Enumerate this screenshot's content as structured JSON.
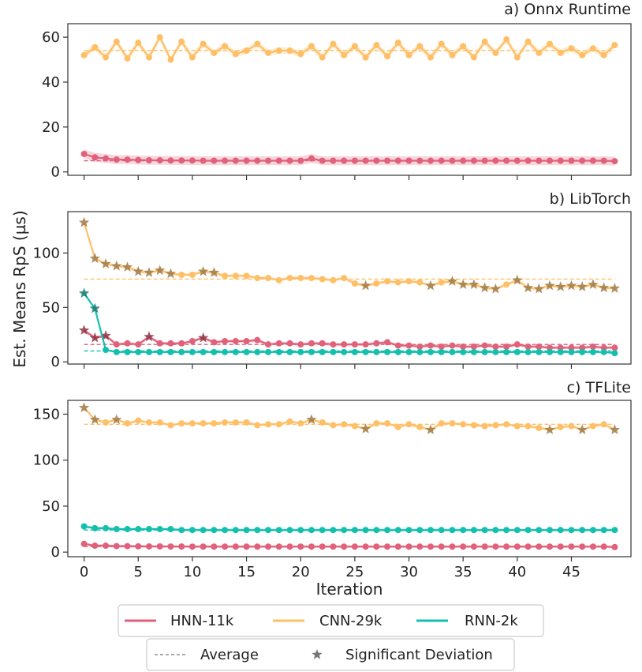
{
  "chart_data": {
    "type": "line",
    "xlabel": "Iteration",
    "ylabel": "Est. Means RpS (µs)",
    "x": [
      0,
      1,
      2,
      3,
      4,
      5,
      6,
      7,
      8,
      9,
      10,
      11,
      12,
      13,
      14,
      15,
      16,
      17,
      18,
      19,
      20,
      21,
      22,
      23,
      24,
      25,
      26,
      27,
      28,
      29,
      30,
      31,
      32,
      33,
      34,
      35,
      36,
      37,
      38,
      39,
      40,
      41,
      42,
      43,
      44,
      45,
      46,
      47,
      48,
      49
    ],
    "xlim": [
      -1.5,
      50.5
    ],
    "xticks": [
      0,
      5,
      10,
      15,
      20,
      25,
      30,
      35,
      40,
      45
    ],
    "series_colors": {
      "HNN-11k": "#e1607a",
      "CNN-29k": "#ffbf66",
      "RNN-2k": "#14bfae"
    },
    "deviation_colors": {
      "HNN-11k": "#8f3545",
      "CNN-29k": "#a07a45",
      "RNN-2k": "#127a70"
    },
    "legend": {
      "series": [
        {
          "name": "HNN-11k",
          "color": "#e1607a"
        },
        {
          "name": "CNN-29k",
          "color": "#ffbf66"
        },
        {
          "name": "RNN-2k",
          "color": "#14bfae"
        }
      ],
      "markers": [
        {
          "name": "Average",
          "kind": "dashed-line",
          "color": "#777777"
        },
        {
          "name": "Significant Deviation",
          "kind": "star",
          "color": "#777777"
        }
      ]
    },
    "panels": [
      {
        "title": "a) Onnx Runtime",
        "ylim": [
          -1.5,
          66
        ],
        "yticks": [
          0,
          20,
          40,
          60
        ],
        "series": [
          {
            "name": "CNN-29k",
            "average": 54,
            "values": [
              52,
              55.5,
              51,
              58,
              50.5,
              57.5,
              51,
              60,
              50,
              58,
              51,
              57,
              53,
              56,
              52.5,
              54,
              57,
              53,
              54,
              54,
              52.5,
              56,
              51,
              57,
              52,
              56,
              51,
              56.5,
              51.5,
              57.5,
              52,
              56,
              51,
              57,
              52,
              56,
              51,
              58,
              53,
              59,
              51,
              58,
              53,
              57,
              53,
              55,
              52,
              55,
              52,
              56.5
            ],
            "band": 1.5,
            "deviations": []
          },
          {
            "name": "HNN-11k",
            "average": 5,
            "values": [
              8,
              6.5,
              6,
              5.5,
              5.5,
              5.3,
              5.2,
              5.2,
              5.1,
              5.1,
              5.1,
              5,
              5,
              5,
              5,
              5,
              5,
              5,
              5,
              5,
              5,
              6,
              5,
              5,
              5,
              5,
              5,
              5,
              5,
              5,
              5,
              5,
              5,
              5,
              5,
              5,
              5,
              5,
              5,
              5,
              5,
              5,
              5,
              5,
              5,
              5,
              5,
              5,
              5,
              4.8
            ],
            "band": 2,
            "deviations": []
          }
        ]
      },
      {
        "title": "b) LibTorch",
        "ylim": [
          -2,
          138
        ],
        "yticks": [
          0,
          50,
          100
        ],
        "series": [
          {
            "name": "CNN-29k",
            "average": 76,
            "values": [
              128,
              95,
              90,
              88,
              87,
              83,
              82,
              84,
              81,
              80,
              80,
              83,
              82,
              79,
              79,
              79,
              77,
              77,
              75,
              77,
              77,
              77,
              76,
              75,
              77,
              72,
              70,
              72,
              74,
              73,
              74,
              73,
              70,
              73,
              74,
              71,
              71,
              68,
              67,
              71,
              75,
              68,
              67,
              70,
              69,
              70,
              69,
              71,
              68,
              67.5
            ],
            "band": 1.5,
            "deviations": [
              0,
              1,
              2,
              3,
              4,
              5,
              6,
              7,
              8,
              11,
              12,
              26,
              32,
              34,
              35,
              36,
              37,
              38,
              40,
              41,
              42,
              43,
              44,
              45,
              46,
              47,
              48,
              49
            ]
          },
          {
            "name": "HNN-11k",
            "average": 16,
            "values": [
              29,
              22,
              24,
              16,
              17,
              16,
              23,
              17,
              17,
              17,
              19,
              22,
              18,
              19,
              19,
              19,
              20,
              16,
              17,
              17,
              16,
              17,
              17,
              16,
              16,
              16,
              16,
              17,
              18,
              15,
              15,
              14,
              15,
              14,
              15,
              14,
              14,
              15,
              14,
              14,
              16,
              14,
              14,
              13,
              13,
              13,
              13,
              14,
              13,
              13
            ],
            "band": 1.5,
            "deviations": [
              0,
              1,
              2,
              6,
              11
            ]
          },
          {
            "name": "RNN-2k",
            "average": 10,
            "values": [
              63,
              49,
              11,
              9,
              9,
              9,
              9,
              9,
              9,
              9,
              9,
              9,
              9,
              9,
              9,
              9,
              9,
              9,
              9,
              9,
              9,
              9,
              9,
              9,
              9,
              9,
              9,
              9,
              9,
              9,
              9,
              9,
              9,
              9,
              9,
              9,
              9,
              9,
              9,
              9,
              9,
              9,
              9,
              9,
              9,
              9,
              9,
              9,
              9,
              8
            ],
            "band": 1,
            "deviations": [
              0,
              1
            ]
          }
        ]
      },
      {
        "title": "c) TFLite",
        "ylim": [
          -5,
          165
        ],
        "yticks": [
          0,
          50,
          100,
          150
        ],
        "series": [
          {
            "name": "CNN-29k",
            "average": 139,
            "values": [
              157,
              144,
              141,
              144,
              140,
              143,
              141,
              141,
              138,
              140,
              140,
              140,
              140,
              141,
              141,
              141,
              138,
              139,
              139,
              142,
              140,
              144,
              141,
              138,
              139,
              137,
              134,
              140,
              140,
              136,
              139,
              136,
              133,
              140,
              140,
              139,
              138,
              137,
              138,
              139,
              137,
              137,
              135,
              133,
              136,
              137,
              133,
              137,
              139,
              133
            ],
            "band": 1.5,
            "deviations": [
              0,
              1,
              3,
              21,
              26,
              32,
              43,
              46,
              49
            ]
          },
          {
            "name": "RNN-2k",
            "average": 24,
            "values": [
              28,
              26,
              26,
              25,
              25,
              25,
              25,
              25,
              25,
              24,
              24,
              24,
              24,
              24,
              24,
              24,
              24,
              24,
              24,
              24,
              24,
              24,
              24,
              24,
              24,
              24,
              24,
              24,
              24,
              24,
              24,
              24,
              24,
              24,
              24,
              24,
              24,
              24,
              24,
              24,
              24,
              24,
              24,
              24,
              24,
              24,
              24,
              24,
              24,
              24
            ],
            "band": 1.5,
            "deviations": []
          },
          {
            "name": "HNN-11k",
            "average": 6,
            "values": [
              9,
              7,
              7,
              6.5,
              6.5,
              6.3,
              6.2,
              6.2,
              6.1,
              6.1,
              6,
              6,
              6,
              6,
              6,
              6,
              6,
              6,
              6,
              6,
              6,
              6,
              6,
              6,
              6,
              6,
              6,
              6,
              6,
              6,
              6,
              6,
              6,
              6,
              6,
              6,
              6,
              6,
              6,
              6,
              6,
              6,
              6,
              6,
              6,
              6,
              6,
              6,
              6,
              5.5
            ],
            "band": 1.5,
            "deviations": []
          }
        ]
      }
    ]
  }
}
